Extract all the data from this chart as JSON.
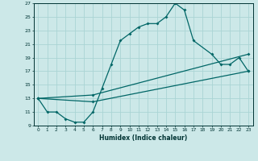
{
  "xlabel": "Humidex (Indice chaleur)",
  "bg_color": "#cce8e8",
  "grid_color": "#aad4d4",
  "line_color": "#006666",
  "xlim": [
    -0.5,
    23.5
  ],
  "ylim": [
    9,
    27
  ],
  "xticks": [
    0,
    1,
    2,
    3,
    4,
    5,
    6,
    7,
    8,
    9,
    10,
    11,
    12,
    13,
    14,
    15,
    16,
    17,
    18,
    19,
    20,
    21,
    22,
    23
  ],
  "yticks": [
    9,
    11,
    13,
    15,
    17,
    19,
    21,
    23,
    25,
    27
  ],
  "line1_x": [
    0,
    1,
    2,
    3,
    4,
    5,
    6,
    7,
    8,
    9,
    10,
    11,
    12,
    13,
    14,
    15,
    16,
    17,
    19,
    20,
    21,
    22,
    23
  ],
  "line1_y": [
    13,
    11,
    11,
    10,
    9.5,
    9.5,
    11,
    14.5,
    18,
    21.5,
    22.5,
    23.5,
    24,
    24,
    25,
    27,
    26,
    21.5,
    19.5,
    18,
    18,
    19,
    17
  ],
  "line2_x": [
    0,
    6,
    23
  ],
  "line2_y": [
    13,
    13.5,
    19.5
  ],
  "line3_x": [
    0,
    6,
    23
  ],
  "line3_y": [
    13,
    12.5,
    17
  ]
}
